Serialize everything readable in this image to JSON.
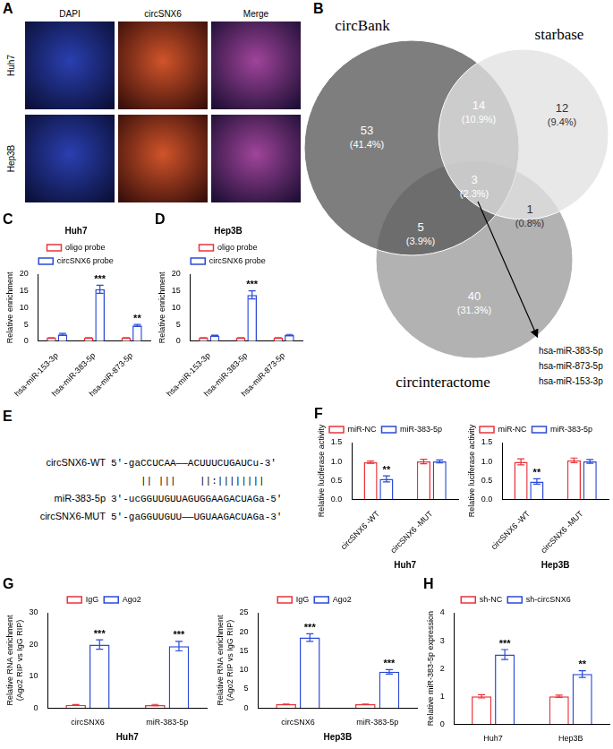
{
  "panel_a": {
    "letter": "A",
    "columns": [
      "DAPI",
      "circSNX6",
      "Merge"
    ],
    "rows": [
      "Huh7",
      "Hep3B"
    ]
  },
  "panel_b": {
    "letter": "B",
    "sets": [
      "circBank",
      "starbase",
      "circinteractome"
    ],
    "regions": [
      {
        "sets": [
          "circBank"
        ],
        "count": 53,
        "percent": "(41.4%)"
      },
      {
        "sets": [
          "circBank",
          "starbase"
        ],
        "count": 14,
        "percent": "(10.9%)"
      },
      {
        "sets": [
          "starbase"
        ],
        "count": 12,
        "percent": "(9.4%)"
      },
      {
        "sets": [
          "circBank",
          "starbase",
          "circinteractome"
        ],
        "count": 3,
        "percent": "(2.3%)"
      },
      {
        "sets": [
          "circBank",
          "circinteractome"
        ],
        "count": 5,
        "percent": "(3.9%)"
      },
      {
        "sets": [
          "starbase",
          "circinteractome"
        ],
        "count": 1,
        "percent": "(0.8%)"
      },
      {
        "sets": [
          "circinteractome"
        ],
        "count": 40,
        "percent": "(31.3%)"
      }
    ],
    "intersection_list": [
      "hsa-miR-383-5p",
      "hsa-miR-873-5p",
      "hsa-miR-153-3p"
    ]
  },
  "panel_e": {
    "letter": "E",
    "lines": [
      {
        "label": "circSNX6-WT",
        "text": "5'-gaCCUCAA——ACUUUCUGAUCu-3'"
      },
      {
        "text": "     || |||    ||:||||||||"
      },
      {
        "label": "miR-383-5p",
        "text": "3'-ucGGUUGUUAGUGGAAGACUAGa-5'"
      },
      {
        "label": "circSNX6-MUT",
        "text": "5'-gaGGUUGUU——UGUAAGACUAGa-3'"
      }
    ]
  },
  "chart_data": [
    {
      "panel": "C",
      "type": "bar",
      "title": "Huh7",
      "y_label": [
        "Relative enrichment"
      ],
      "categories": [
        "hsa-miR-153-3p",
        "hsa-miR-383-5p",
        "hsa-miR-873-5p"
      ],
      "series": [
        {
          "name": "oligo probe",
          "color": "#e8343a",
          "values": [
            1,
            1,
            1
          ],
          "errors": [
            0.05,
            0.05,
            0.05
          ],
          "significance": [
            null,
            null,
            null
          ]
        },
        {
          "name": "circSNX6 probe",
          "color": "#2b4bd8",
          "values": [
            2.0,
            15.5,
            4.7
          ],
          "errors": [
            0.3,
            1.2,
            0.3
          ],
          "significance": [
            null,
            "***",
            "**"
          ]
        }
      ],
      "ylim": [
        0,
        20
      ],
      "yticks": [
        0,
        5,
        10,
        15,
        20
      ],
      "grid": false,
      "legend": "top"
    },
    {
      "panel": "D",
      "type": "bar",
      "title": "Hep3B",
      "y_label": [
        "Relative enrichment"
      ],
      "categories": [
        "hsa-miR-153-3p",
        "hsa-miR-383-5p",
        "hsa-miR-873-5p"
      ],
      "series": [
        {
          "name": "oligo probe",
          "color": "#e8343a",
          "values": [
            1,
            1,
            1
          ],
          "errors": [
            0.05,
            0.05,
            0.05
          ],
          "significance": [
            null,
            null,
            null
          ]
        },
        {
          "name": "circSNX6 probe",
          "color": "#2b4bd8",
          "values": [
            1.7,
            13.8,
            1.8
          ],
          "errors": [
            0.1,
            1.2,
            0.2
          ],
          "significance": [
            null,
            "***",
            null
          ]
        }
      ],
      "ylim": [
        0,
        20
      ],
      "yticks": [
        0,
        5,
        10,
        15,
        20
      ],
      "grid": false,
      "legend": "top"
    },
    {
      "panel": "F",
      "type": "bar",
      "x_label": "Huh7",
      "y_label": [
        "Relative luciferase activity"
      ],
      "categories": [
        "circSNX6 -WT",
        "circSNX6 -MUT"
      ],
      "series": [
        {
          "name": "miR-NC",
          "color": "#e8343a",
          "values": [
            0.98,
            1.0
          ],
          "errors": [
            0.03,
            0.06
          ],
          "significance": [
            null,
            null
          ]
        },
        {
          "name": "miR-383-5p",
          "color": "#2b4bd8",
          "values": [
            0.54,
            1.0
          ],
          "errors": [
            0.08,
            0.04
          ],
          "significance": [
            "**",
            null
          ]
        }
      ],
      "ylim": [
        0,
        1.5
      ],
      "yticks": [
        {
          "value": 0,
          "label": "0.0"
        },
        {
          "value": 0.5,
          "label": "0.5"
        },
        {
          "value": 1,
          "label": "1.0"
        },
        {
          "value": 1.5,
          "label": "1.5"
        }
      ],
      "grid": false,
      "legend": "top"
    },
    {
      "type": "bar",
      "x_label": "Hep3B",
      "y_label": [
        "Relative luciferase activity"
      ],
      "categories": [
        "circSNX6 -WT",
        "circSNX6 -MUT"
      ],
      "series": [
        {
          "name": "miR-NC",
          "color": "#e8343a",
          "values": [
            0.99,
            1.03
          ],
          "errors": [
            0.08,
            0.06
          ],
          "significance": [
            null,
            null
          ]
        },
        {
          "name": "miR-383-5p",
          "color": "#2b4bd8",
          "values": [
            0.47,
            1.0
          ],
          "errors": [
            0.07,
            0.05
          ],
          "significance": [
            "**",
            null
          ]
        }
      ],
      "ylim": [
        0,
        1.5
      ],
      "yticks": [
        {
          "value": 0,
          "label": "0.0"
        },
        {
          "value": 0.5,
          "label": "0.5"
        },
        {
          "value": 1,
          "label": "1.0"
        },
        {
          "value": 1.5,
          "label": "1.5"
        }
      ],
      "grid": false,
      "legend": "top"
    },
    {
      "panel": "G",
      "type": "bar",
      "x_label": "Huh7",
      "y_label": [
        "Relative RNA enrichment",
        "(Ago2 RIP vs IgG RIP)"
      ],
      "categories": [
        "circSNX6",
        "miR-383-5p"
      ],
      "series": [
        {
          "name": "IgG",
          "color": "#e8343a",
          "values": [
            0.95,
            0.92
          ],
          "errors": [
            0.15,
            0.2
          ],
          "significance": [
            null,
            null
          ]
        },
        {
          "name": "Ago2",
          "color": "#2b4bd8",
          "values": [
            20,
            19.5
          ],
          "errors": [
            1.5,
            1.5
          ],
          "significance": [
            "***",
            "***"
          ]
        }
      ],
      "ylim": [
        0,
        30
      ],
      "yticks": [
        0,
        10,
        20,
        30
      ],
      "grid": false,
      "legend": "top"
    },
    {
      "type": "bar",
      "x_label": "Hep3B",
      "y_label": [
        "Relative RNA enrichment",
        "(Ago2 RIP vs IgG RIP)"
      ],
      "categories": [
        "circSNX6",
        "miR-383-5p"
      ],
      "series": [
        {
          "name": "IgG",
          "color": "#e8343a",
          "values": [
            1.0,
            0.97
          ],
          "errors": [
            0.05,
            0.05
          ],
          "significance": [
            null,
            null
          ]
        },
        {
          "name": "Ago2",
          "color": "#2b4bd8",
          "values": [
            18.5,
            9.5
          ],
          "errors": [
            1.0,
            0.6
          ],
          "significance": [
            "***",
            "***"
          ]
        }
      ],
      "ylim": [
        0,
        25
      ],
      "yticks": [
        0,
        5,
        10,
        15,
        20,
        25
      ],
      "grid": false,
      "legend": "top"
    },
    {
      "panel": "H",
      "type": "bar",
      "y_label": [
        "Relative miR-383-5p expression"
      ],
      "categories": [
        "Huh7",
        "Hep3B"
      ],
      "series": [
        {
          "name": "sh-NC",
          "color": "#e8343a",
          "values": [
            1.0,
            1.0
          ],
          "errors": [
            0.06,
            0.04
          ],
          "significance": [
            null,
            null
          ]
        },
        {
          "name": "sh-circSNX6",
          "color": "#2b4bd8",
          "values": [
            2.5,
            1.8
          ],
          "errors": [
            0.18,
            0.12
          ],
          "significance": [
            "***",
            "**"
          ]
        }
      ],
      "ylim": [
        0,
        4
      ],
      "yticks": [
        0,
        1,
        2,
        3,
        4
      ],
      "grid": false,
      "legend": "top"
    }
  ]
}
